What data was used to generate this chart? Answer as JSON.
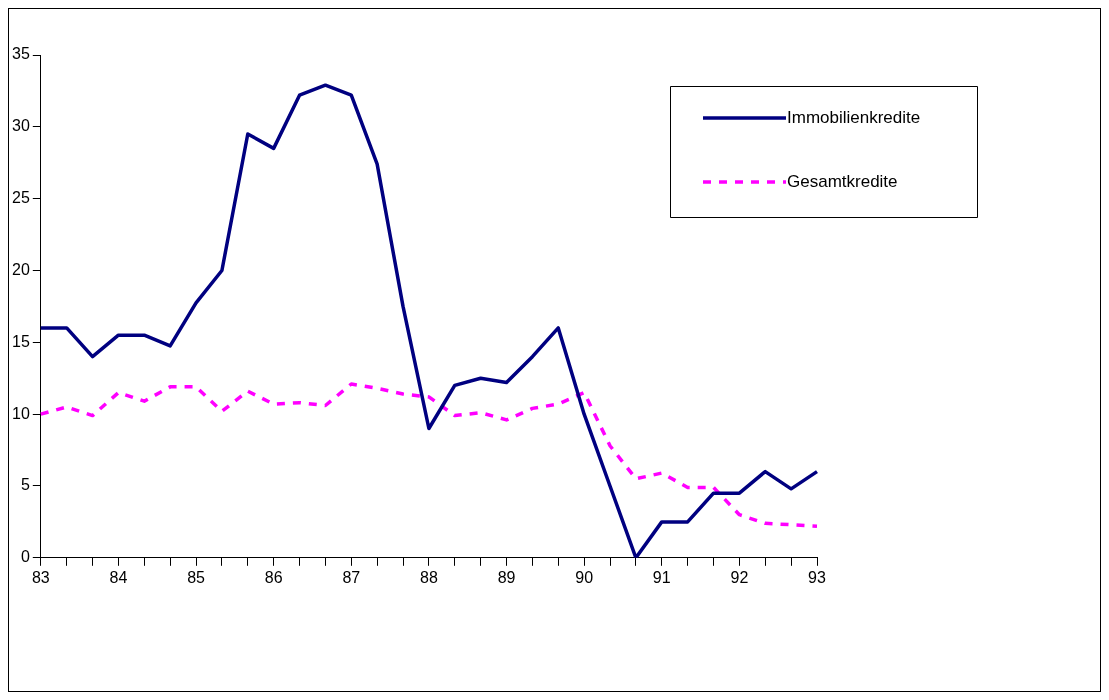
{
  "chart_data": {
    "type": "line",
    "categories": [
      "83",
      null,
      null,
      "84",
      null,
      null,
      "85",
      null,
      null,
      "86",
      null,
      null,
      "87",
      null,
      null,
      "88",
      null,
      null,
      "89",
      null,
      null,
      "90",
      null,
      null,
      "91",
      null,
      null,
      "92",
      null,
      null,
      "93"
    ],
    "series": [
      {
        "name": "Immobilienkredite",
        "color": "#000080",
        "line_style": "solid",
        "values": [
          16,
          16,
          14,
          15.5,
          15.5,
          14.75,
          17.75,
          20,
          29.5,
          28.5,
          32.2,
          32.9,
          32.2,
          27.4,
          17.5,
          9,
          12,
          12.5,
          12.2,
          14,
          16,
          10,
          5,
          0,
          2.5,
          2.5,
          4.5,
          4.5,
          6,
          4.8,
          6
        ]
      },
      {
        "name": "Gesamtkredite",
        "color": "#ff00ff",
        "line_style": "dashed",
        "values": [
          10,
          10.5,
          9.9,
          11.5,
          10.9,
          11.9,
          11.9,
          10.2,
          11.6,
          10.7,
          10.8,
          10.6,
          12.1,
          11.8,
          11.4,
          11.2,
          9.9,
          10.1,
          9.6,
          10.4,
          10.7,
          11.5,
          7.8,
          5.5,
          5.9,
          4.9,
          4.9,
          3,
          2.4,
          2.3,
          2.2
        ]
      }
    ],
    "ylim": [
      0,
      35
    ],
    "yticks": [
      0,
      5,
      10,
      15,
      20,
      25,
      30,
      35
    ],
    "grid": false,
    "legend": "top right",
    "marker": "none"
  }
}
